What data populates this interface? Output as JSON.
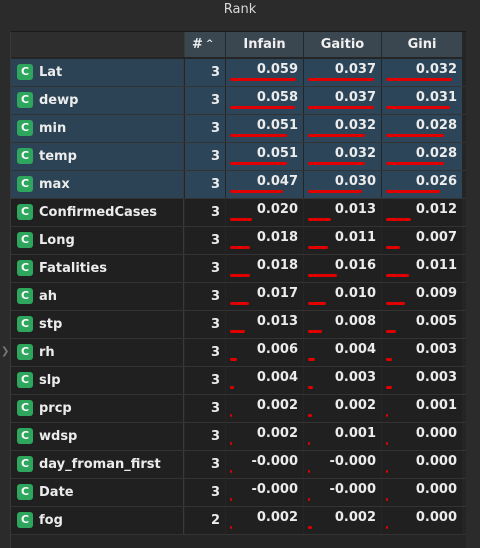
{
  "window": {
    "title": "Rank"
  },
  "columns": {
    "hash": "#",
    "infain": "Infain",
    "gaitio": "Gaitio",
    "gini": "Gini",
    "sort_indicator": "^"
  },
  "accent": {
    "bar_color": "#e00000",
    "selection_color": "#2c4558",
    "badge_color": "#2ea65d"
  },
  "rows": [
    {
      "badge": "C",
      "name": "Lat",
      "rank": "3",
      "infain": "0.059",
      "gaitio": "0.037",
      "gini": "0.032",
      "selected": true
    },
    {
      "badge": "C",
      "name": "dewp",
      "rank": "3",
      "infain": "0.058",
      "gaitio": "0.037",
      "gini": "0.031",
      "selected": true
    },
    {
      "badge": "C",
      "name": "min",
      "rank": "3",
      "infain": "0.051",
      "gaitio": "0.032",
      "gini": "0.028",
      "selected": true
    },
    {
      "badge": "C",
      "name": "temp",
      "rank": "3",
      "infain": "0.051",
      "gaitio": "0.032",
      "gini": "0.028",
      "selected": true
    },
    {
      "badge": "C",
      "name": "max",
      "rank": "3",
      "infain": "0.047",
      "gaitio": "0.030",
      "gini": "0.026",
      "selected": true
    },
    {
      "badge": "C",
      "name": "ConfirmedCases",
      "rank": "3",
      "infain": "0.020",
      "gaitio": "0.013",
      "gini": "0.012",
      "selected": false
    },
    {
      "badge": "C",
      "name": "Long",
      "rank": "3",
      "infain": "0.018",
      "gaitio": "0.011",
      "gini": "0.007",
      "selected": false
    },
    {
      "badge": "C",
      "name": "Fatalities",
      "rank": "3",
      "infain": "0.018",
      "gaitio": "0.016",
      "gini": "0.011",
      "selected": false
    },
    {
      "badge": "C",
      "name": "ah",
      "rank": "3",
      "infain": "0.017",
      "gaitio": "0.010",
      "gini": "0.009",
      "selected": false
    },
    {
      "badge": "C",
      "name": "stp",
      "rank": "3",
      "infain": "0.013",
      "gaitio": "0.008",
      "gini": "0.005",
      "selected": false
    },
    {
      "badge": "C",
      "name": "rh",
      "rank": "3",
      "infain": "0.006",
      "gaitio": "0.004",
      "gini": "0.003",
      "selected": false
    },
    {
      "badge": "C",
      "name": "slp",
      "rank": "3",
      "infain": "0.004",
      "gaitio": "0.003",
      "gini": "0.003",
      "selected": false
    },
    {
      "badge": "C",
      "name": "prcp",
      "rank": "3",
      "infain": "0.002",
      "gaitio": "0.002",
      "gini": "0.001",
      "selected": false
    },
    {
      "badge": "C",
      "name": "wdsp",
      "rank": "3",
      "infain": "0.002",
      "gaitio": "0.001",
      "gini": "0.000",
      "selected": false
    },
    {
      "badge": "C",
      "name": "day_froman_first",
      "rank": "3",
      "infain": "-0.000",
      "gaitio": "-0.000",
      "gini": "0.000",
      "selected": false
    },
    {
      "badge": "C",
      "name": "Date",
      "rank": "3",
      "infain": "-0.000",
      "gaitio": "-0.000",
      "gini": "0.000",
      "selected": false
    },
    {
      "badge": "C",
      "name": "fog",
      "rank": "2",
      "infain": "0.002",
      "gaitio": "0.002",
      "gini": "0.000",
      "selected": false
    }
  ]
}
